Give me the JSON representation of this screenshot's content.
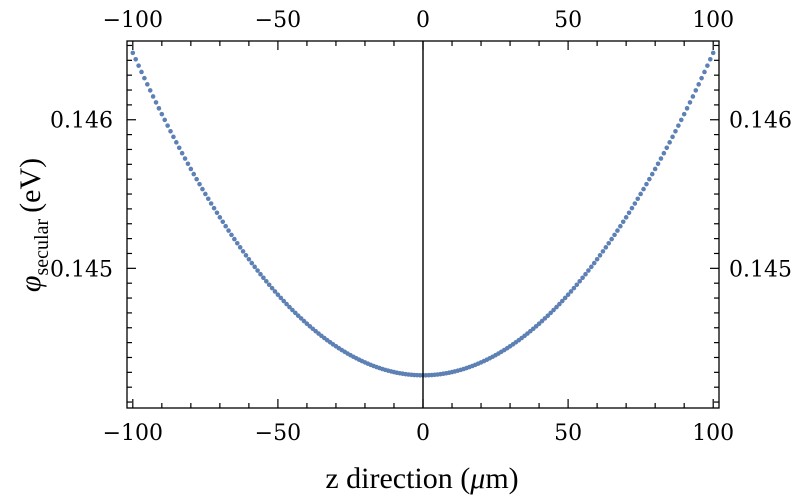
{
  "chart_data": {
    "type": "scatter",
    "xlabel": "z direction (μm)",
    "xlabel_parts": {
      "before": "z direction (",
      "mu": "μ",
      "after": "m)"
    },
    "ylabel": "φsecular (eV)",
    "ylabel_parts": {
      "symbol": "φ",
      "subscript": "secular",
      "unit": "(eV)"
    },
    "xlim": [
      -102,
      102
    ],
    "ylim": [
      0.14406,
      0.14653
    ],
    "x_ticks": [
      -100,
      -50,
      0,
      50,
      100
    ],
    "x_tick_labels": [
      "−100",
      "−50",
      "0",
      "50",
      "100"
    ],
    "y_ticks": [
      0.145,
      0.146
    ],
    "y_tick_labels": [
      "0.145",
      "0.146"
    ],
    "grid": false,
    "frame": "box with ticks on all four sides",
    "zero_line": "vertical line at x = 0",
    "marker_color": "#5E81B5",
    "series": [
      {
        "model": "quadratic",
        "x_start": -100,
        "x_end": 100,
        "x_step": 1,
        "vertex_x": 0,
        "vertex_y": 0.14428,
        "curvature_per_um2": 2.17e-07,
        "y_at_minus_100": 0.146452,
        "y_at_0": 0.14428,
        "y_at_plus_100": 0.146452
      }
    ]
  }
}
